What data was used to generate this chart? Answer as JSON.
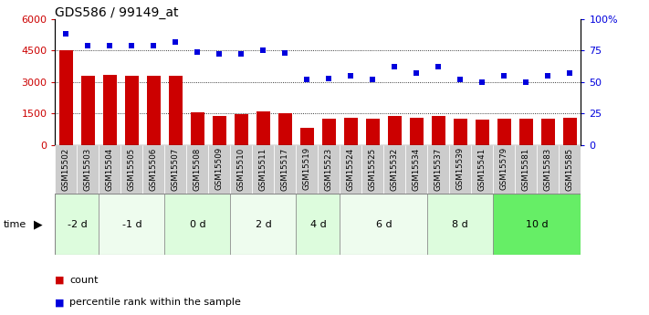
{
  "title": "GDS586 / 99149_at",
  "samples": [
    "GSM15502",
    "GSM15503",
    "GSM15504",
    "GSM15505",
    "GSM15506",
    "GSM15507",
    "GSM15508",
    "GSM15509",
    "GSM15510",
    "GSM15511",
    "GSM15517",
    "GSM15519",
    "GSM15523",
    "GSM15524",
    "GSM15525",
    "GSM15532",
    "GSM15534",
    "GSM15537",
    "GSM15539",
    "GSM15541",
    "GSM15579",
    "GSM15581",
    "GSM15583",
    "GSM15585"
  ],
  "counts": [
    4500,
    3300,
    3350,
    3300,
    3300,
    3300,
    1550,
    1400,
    1450,
    1600,
    1500,
    820,
    1230,
    1280,
    1230,
    1380,
    1270,
    1370,
    1230,
    1200,
    1250,
    1230,
    1230,
    1290
  ],
  "percentiles": [
    88,
    79,
    79,
    79,
    79,
    82,
    74,
    72,
    72,
    75,
    73,
    52,
    53,
    55,
    52,
    62,
    57,
    62,
    52,
    50,
    55,
    50,
    55,
    57
  ],
  "groups": [
    {
      "label": "-2 d",
      "start": 0,
      "end": 2,
      "color": "#ddfcdd"
    },
    {
      "label": "-1 d",
      "start": 2,
      "end": 5,
      "color": "#eefcee"
    },
    {
      "label": "0 d",
      "start": 5,
      "end": 8,
      "color": "#ddfcdd"
    },
    {
      "label": "2 d",
      "start": 8,
      "end": 11,
      "color": "#eefcee"
    },
    {
      "label": "4 d",
      "start": 11,
      "end": 13,
      "color": "#ddfcdd"
    },
    {
      "label": "6 d",
      "start": 13,
      "end": 17,
      "color": "#eefcee"
    },
    {
      "label": "8 d",
      "start": 17,
      "end": 20,
      "color": "#ddfcdd"
    },
    {
      "label": "10 d",
      "start": 20,
      "end": 24,
      "color": "#66ee66"
    }
  ],
  "bar_color": "#cc0000",
  "dot_color": "#0000dd",
  "ylim_left": [
    0,
    6000
  ],
  "ylim_right": [
    0,
    100
  ],
  "yticks_left": [
    0,
    1500,
    3000,
    4500,
    6000
  ],
  "yticks_right": [
    0,
    25,
    50,
    75,
    100
  ],
  "yticklabels_right": [
    "0",
    "25",
    "50",
    "75",
    "100%"
  ],
  "xlabel_color": "#333333",
  "tick_bg_color": "#cccccc"
}
